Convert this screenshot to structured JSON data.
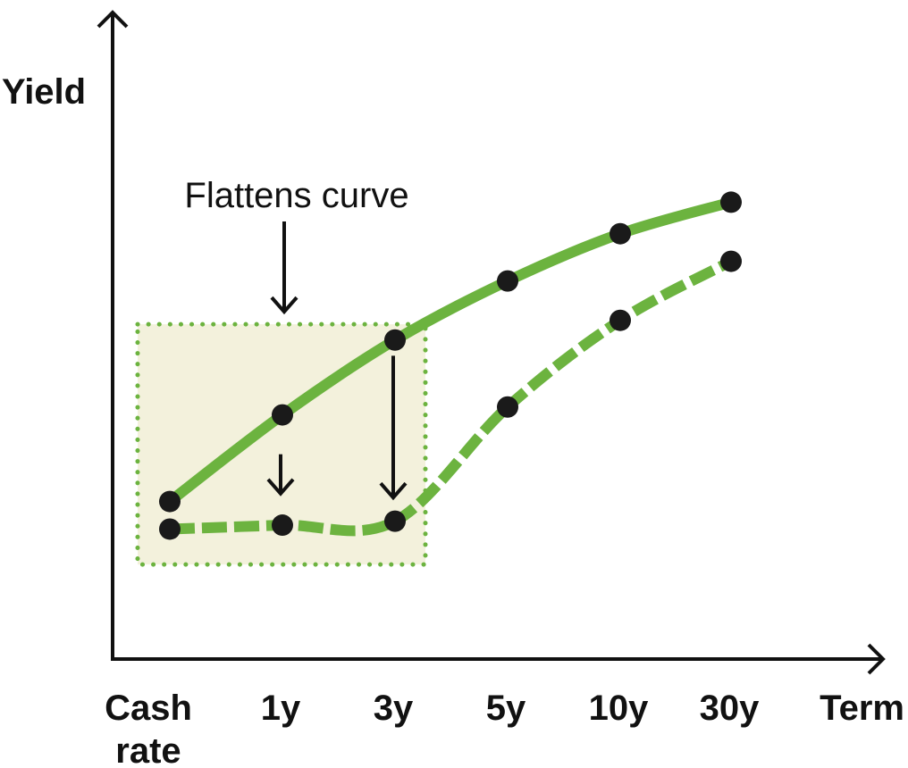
{
  "chart_data": {
    "type": "line",
    "xlabel": "Term",
    "ylabel": "Yield",
    "categories": [
      "Cash rate",
      "1y",
      "3y",
      "5y",
      "10y",
      "30y"
    ],
    "tick_lines": [
      [
        "Cash",
        "rate"
      ],
      [
        "1y"
      ],
      [
        "3y"
      ],
      [
        "5y"
      ],
      [
        "10y"
      ],
      [
        "30y"
      ]
    ],
    "series": [
      {
        "style": "solid",
        "values": [
          2.0,
          3.1,
          4.05,
          4.8,
          5.4,
          5.8
        ]
      },
      {
        "style": "dashed",
        "values": [
          1.65,
          1.7,
          1.75,
          3.2,
          4.3,
          5.05
        ]
      }
    ],
    "ylim": [
      0,
      7.8
    ],
    "highlight": {
      "label": "Flattens curve",
      "x_from": "Cash rate",
      "x_to": "3y",
      "y_range": [
        1.2,
        4.25
      ]
    },
    "annotations": [
      {
        "type": "arrow",
        "x": "1y",
        "from": 2.6,
        "to": 2.1
      },
      {
        "type": "arrow",
        "x": "3y",
        "from": 3.85,
        "to": 2.05
      }
    ],
    "colors": {
      "line": "#6cb33f",
      "marker": "#1a1a1a",
      "box_fill": "#f3f1dc",
      "box_border": "#6cb33f",
      "axis": "#111111"
    }
  }
}
